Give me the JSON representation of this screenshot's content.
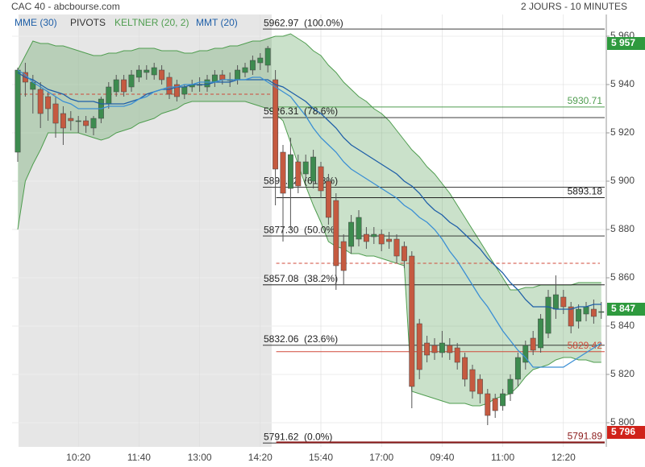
{
  "chart_data": {
    "type": "candlestick",
    "title": "CAC 40 - abcbourse.com",
    "subtitle": "2 JOURS - 10 MINUTES",
    "categories": [
      null,
      null,
      null,
      null,
      null,
      null,
      null,
      null,
      "10:20",
      null,
      null,
      null,
      null,
      null,
      null,
      null,
      "11:40",
      null,
      null,
      null,
      null,
      null,
      null,
      null,
      "13:00",
      null,
      null,
      null,
      null,
      null,
      null,
      null,
      "14:20",
      null,
      null,
      null,
      null,
      null,
      null,
      null,
      "15:40",
      null,
      null,
      null,
      null,
      null,
      null,
      null,
      "17:00",
      null,
      null,
      null,
      null,
      null,
      null,
      null,
      "09:40",
      null,
      null,
      null,
      null,
      null,
      null,
      null,
      "11:00",
      null,
      null,
      null,
      null,
      null,
      null,
      null,
      "12:20",
      null,
      null,
      null,
      null,
      null
    ],
    "open": [
      5912,
      5945,
      5938,
      5938,
      5935,
      5932,
      5928,
      5926,
      5925,
      5925,
      5922,
      5926,
      5932,
      5937,
      5942,
      5939,
      5943,
      5945,
      5944,
      5946,
      5943,
      5940,
      5936,
      5939,
      5940,
      5939,
      5941,
      5944,
      5942,
      5942,
      5945,
      5946,
      5949,
      5948,
      5942,
      5912,
      5897,
      5908,
      5903,
      5900,
      5906,
      5900,
      5892,
      5875,
      5873,
      5876,
      5878,
      5877,
      5878,
      5876,
      5876,
      5873,
      5869,
      5841,
      5833,
      5832,
      5829,
      5832,
      5831,
      5827,
      5822,
      5818,
      5812,
      5810,
      5807,
      5812,
      5818,
      5825,
      5835,
      5831,
      5837,
      5847,
      5852,
      5848,
      5842,
      5845,
      5847,
      5846
    ],
    "high": [
      5947,
      5949,
      5944,
      5941,
      5937,
      5935,
      5931,
      5929,
      5927,
      5927,
      5927,
      5935,
      5941,
      5944,
      5944,
      5946,
      5948,
      5948,
      5949,
      5948,
      5945,
      5942,
      5940,
      5942,
      5943,
      5944,
      5946,
      5946,
      5945,
      5948,
      5949,
      5952,
      5953,
      5956,
      5946,
      5915,
      5918,
      5911,
      5911,
      5913,
      5908,
      5903,
      5895,
      5878,
      5886,
      5888,
      5881,
      5881,
      5880,
      5879,
      5878,
      5875,
      5871,
      5843,
      5836,
      5835,
      5838,
      5835,
      5833,
      5829,
      5824,
      5820,
      5814,
      5812,
      5814,
      5820,
      5829,
      5834,
      5838,
      5845,
      5855,
      5861,
      5855,
      5850,
      5849,
      5850,
      5851,
      5850
    ],
    "low": [
      5908,
      5935,
      5928,
      5922,
      5925,
      5918,
      5915,
      5921,
      5920,
      5920,
      5919,
      5924,
      5930,
      5935,
      5935,
      5937,
      5941,
      5942,
      5942,
      5940,
      5934,
      5933,
      5934,
      5937,
      5937,
      5937,
      5939,
      5940,
      5939,
      5940,
      5943,
      5944,
      5946,
      5945,
      5890,
      5875,
      5880,
      5895,
      5900,
      5897,
      5893,
      5882,
      5855,
      5857,
      5870,
      5873,
      5872,
      5874,
      5871,
      5872,
      5866,
      5864,
      5806,
      5818,
      5825,
      5826,
      5827,
      5826,
      5822,
      5815,
      5810,
      5808,
      5799,
      5802,
      5805,
      5809,
      5815,
      5822,
      5828,
      5829,
      5835,
      5843,
      5845,
      5837,
      5839,
      5842,
      5841,
      5843
    ],
    "close": [
      5946,
      5941,
      5941,
      5928,
      5930,
      5924,
      5922,
      5925,
      5925,
      5923,
      5926,
      5934,
      5939,
      5942,
      5937,
      5944,
      5946,
      5946,
      5947,
      5942,
      5936,
      5935,
      5939,
      5940,
      5940,
      5942,
      5944,
      5942,
      5942,
      5946,
      5947,
      5950,
      5951,
      5955,
      5905,
      5895,
      5911,
      5898,
      5908,
      5910,
      5896,
      5885,
      5865,
      5863,
      5883,
      5885,
      5875,
      5878,
      5874,
      5875,
      5869,
      5867,
      5815,
      5822,
      5828,
      5829,
      5833,
      5829,
      5825,
      5818,
      5813,
      5812,
      5803,
      5805,
      5812,
      5818,
      5827,
      5832,
      5830,
      5843,
      5852,
      5853,
      5848,
      5840,
      5847,
      5848,
      5844,
      5846
    ],
    "up_color": "#3d8b4f",
    "down_color": "#c55a40",
    "keltner": {
      "name": "KELTNER (20, 2)",
      "color": "#4f9d4f",
      "upper": [
        5946,
        5952,
        5958,
        5957,
        5957,
        5956,
        5956,
        5955,
        5954,
        5953,
        5952,
        5952,
        5953,
        5953,
        5954,
        5954,
        5955,
        5955,
        5955,
        5954,
        5954,
        5954,
        5953,
        5953,
        5954,
        5954,
        5955,
        5955,
        5956,
        5956,
        5957,
        5958,
        5958,
        5959,
        5960,
        5960,
        5961,
        5959,
        5957,
        5954,
        5952,
        5948,
        5945,
        5941,
        5938,
        5935,
        5933,
        5930,
        5928,
        5925,
        5921,
        5917,
        5913,
        5910,
        5906,
        5903,
        5899,
        5895,
        5890,
        5885,
        5880,
        5875,
        5870,
        5865,
        5860,
        5855,
        5855,
        5856,
        5856,
        5857,
        5857,
        5857,
        5857,
        5857,
        5858,
        5858,
        5858,
        5858
      ],
      "lower": [
        5880,
        5900,
        5907,
        5913,
        5920,
        5920,
        5920,
        5920,
        5920,
        5919,
        5918,
        5917,
        5918,
        5920,
        5921,
        5922,
        5924,
        5925,
        5926,
        5928,
        5929,
        5930,
        5932,
        5933,
        5933,
        5933,
        5933,
        5933,
        5933,
        5933,
        5933,
        5932,
        5931,
        5930,
        5928,
        5925,
        5916,
        5907,
        5898,
        5890,
        5883,
        5875,
        5873,
        5872,
        5870,
        5870,
        5869,
        5869,
        5868,
        5867,
        5866,
        5865,
        5813,
        5812,
        5811,
        5810,
        5809,
        5808,
        5808,
        5808,
        5807,
        5807,
        5808,
        5810,
        5811,
        5812,
        5815,
        5819,
        5822,
        5823,
        5824,
        5826,
        5827,
        5827,
        5826,
        5826,
        5825,
        5825
      ]
    },
    "series": [
      {
        "name": "MME (30)",
        "color": "#1f5fa8",
        "values": [
          5945,
          5943,
          5942,
          5940,
          5938,
          5937,
          5936,
          5934,
          5933,
          5933,
          5933,
          5932,
          5932,
          5932,
          5932,
          5933,
          5934,
          5936,
          5937,
          5938,
          5938,
          5939,
          5939,
          5940,
          5940,
          5940,
          5941,
          5941,
          5941,
          5942,
          5942,
          5942,
          5942,
          5942,
          5940,
          5939,
          5937,
          5935,
          5933,
          5930,
          5928,
          5925,
          5922,
          5918,
          5915,
          5913,
          5911,
          5909,
          5907,
          5905,
          5903,
          5900,
          5898,
          5895,
          5891,
          5888,
          5886,
          5883,
          5881,
          5878,
          5875,
          5872,
          5868,
          5865,
          5862,
          5858,
          5855,
          5851,
          5848,
          5848,
          5848,
          5847,
          5847,
          5847,
          5848,
          5848,
          5849,
          5849
        ]
      },
      {
        "name": "MMT (20)",
        "color": "#3b8fd4",
        "values": [
          5946,
          5944,
          5941,
          5939,
          5937,
          5935,
          5933,
          5932,
          5930,
          5930,
          5930,
          5930,
          5931,
          5931,
          5931,
          5932,
          5934,
          5935,
          5937,
          5938,
          5939,
          5939,
          5940,
          5940,
          5941,
          5941,
          5941,
          5942,
          5942,
          5942,
          5942,
          5943,
          5943,
          5941,
          5939,
          5937,
          5935,
          5931,
          5927,
          5922,
          5918,
          5915,
          5912,
          5908,
          5905,
          5903,
          5901,
          5899,
          5897,
          5895,
          5893,
          5890,
          5888,
          5885,
          5883,
          5880,
          5876,
          5871,
          5867,
          5862,
          5857,
          5852,
          5848,
          5843,
          5838,
          5834,
          5830,
          5827,
          5823,
          5823,
          5823,
          5823,
          5823,
          5825,
          5827,
          5829,
          5831,
          5833
        ]
      }
    ],
    "pivots": {
      "name": "PIVOTS",
      "color": "#333333",
      "levels": [
        {
          "value": 5930.71,
          "color": "#4f9d4f"
        },
        {
          "value": 5893.18,
          "color": "#222222"
        },
        {
          "value": 5829.42,
          "color": "#d04a3a"
        },
        {
          "value": 5791.89,
          "color": "#8b1a1a"
        }
      ],
      "dashed": [
        5936,
        5866
      ],
      "dashed_color": "#d04a3a"
    },
    "fibonacci": [
      {
        "value": 5962.97,
        "label": "5962.97  (100.0%)"
      },
      {
        "value": 5926.31,
        "label": "5926.31  (78.6%)"
      },
      {
        "value": 5897.52,
        "label": "5897.52  (61.8%)"
      },
      {
        "value": 5877.3,
        "label": "5877.30  (50.0%)"
      },
      {
        "value": 5857.08,
        "label": "5857.08  (38.2%)"
      },
      {
        "value": 5832.06,
        "label": "5832.06  (23.6%)"
      },
      {
        "value": 5791.62,
        "label": "5791.62  (0.0%)"
      }
    ],
    "price_tags": [
      {
        "value": 5957,
        "label": "5 957",
        "color": "#2e9a3e"
      },
      {
        "value": 5847,
        "label": "5 847",
        "color": "#2e9a3e"
      },
      {
        "value": 5796,
        "label": "5 796",
        "color": "#d0221a"
      }
    ],
    "ylim": [
      5790,
      5972
    ],
    "yticks": [
      {
        "value": 5800,
        "label": "5 800"
      },
      {
        "value": 5820,
        "label": "5 820"
      },
      {
        "value": 5840,
        "label": "5 840"
      },
      {
        "value": 5860,
        "label": "5 860"
      },
      {
        "value": 5880,
        "label": "5 880"
      },
      {
        "value": 5900,
        "label": "5 900"
      },
      {
        "value": 5920,
        "label": "5 920"
      },
      {
        "value": 5940,
        "label": "5 940"
      },
      {
        "value": 5960,
        "label": "5 960"
      }
    ],
    "grid": true
  }
}
